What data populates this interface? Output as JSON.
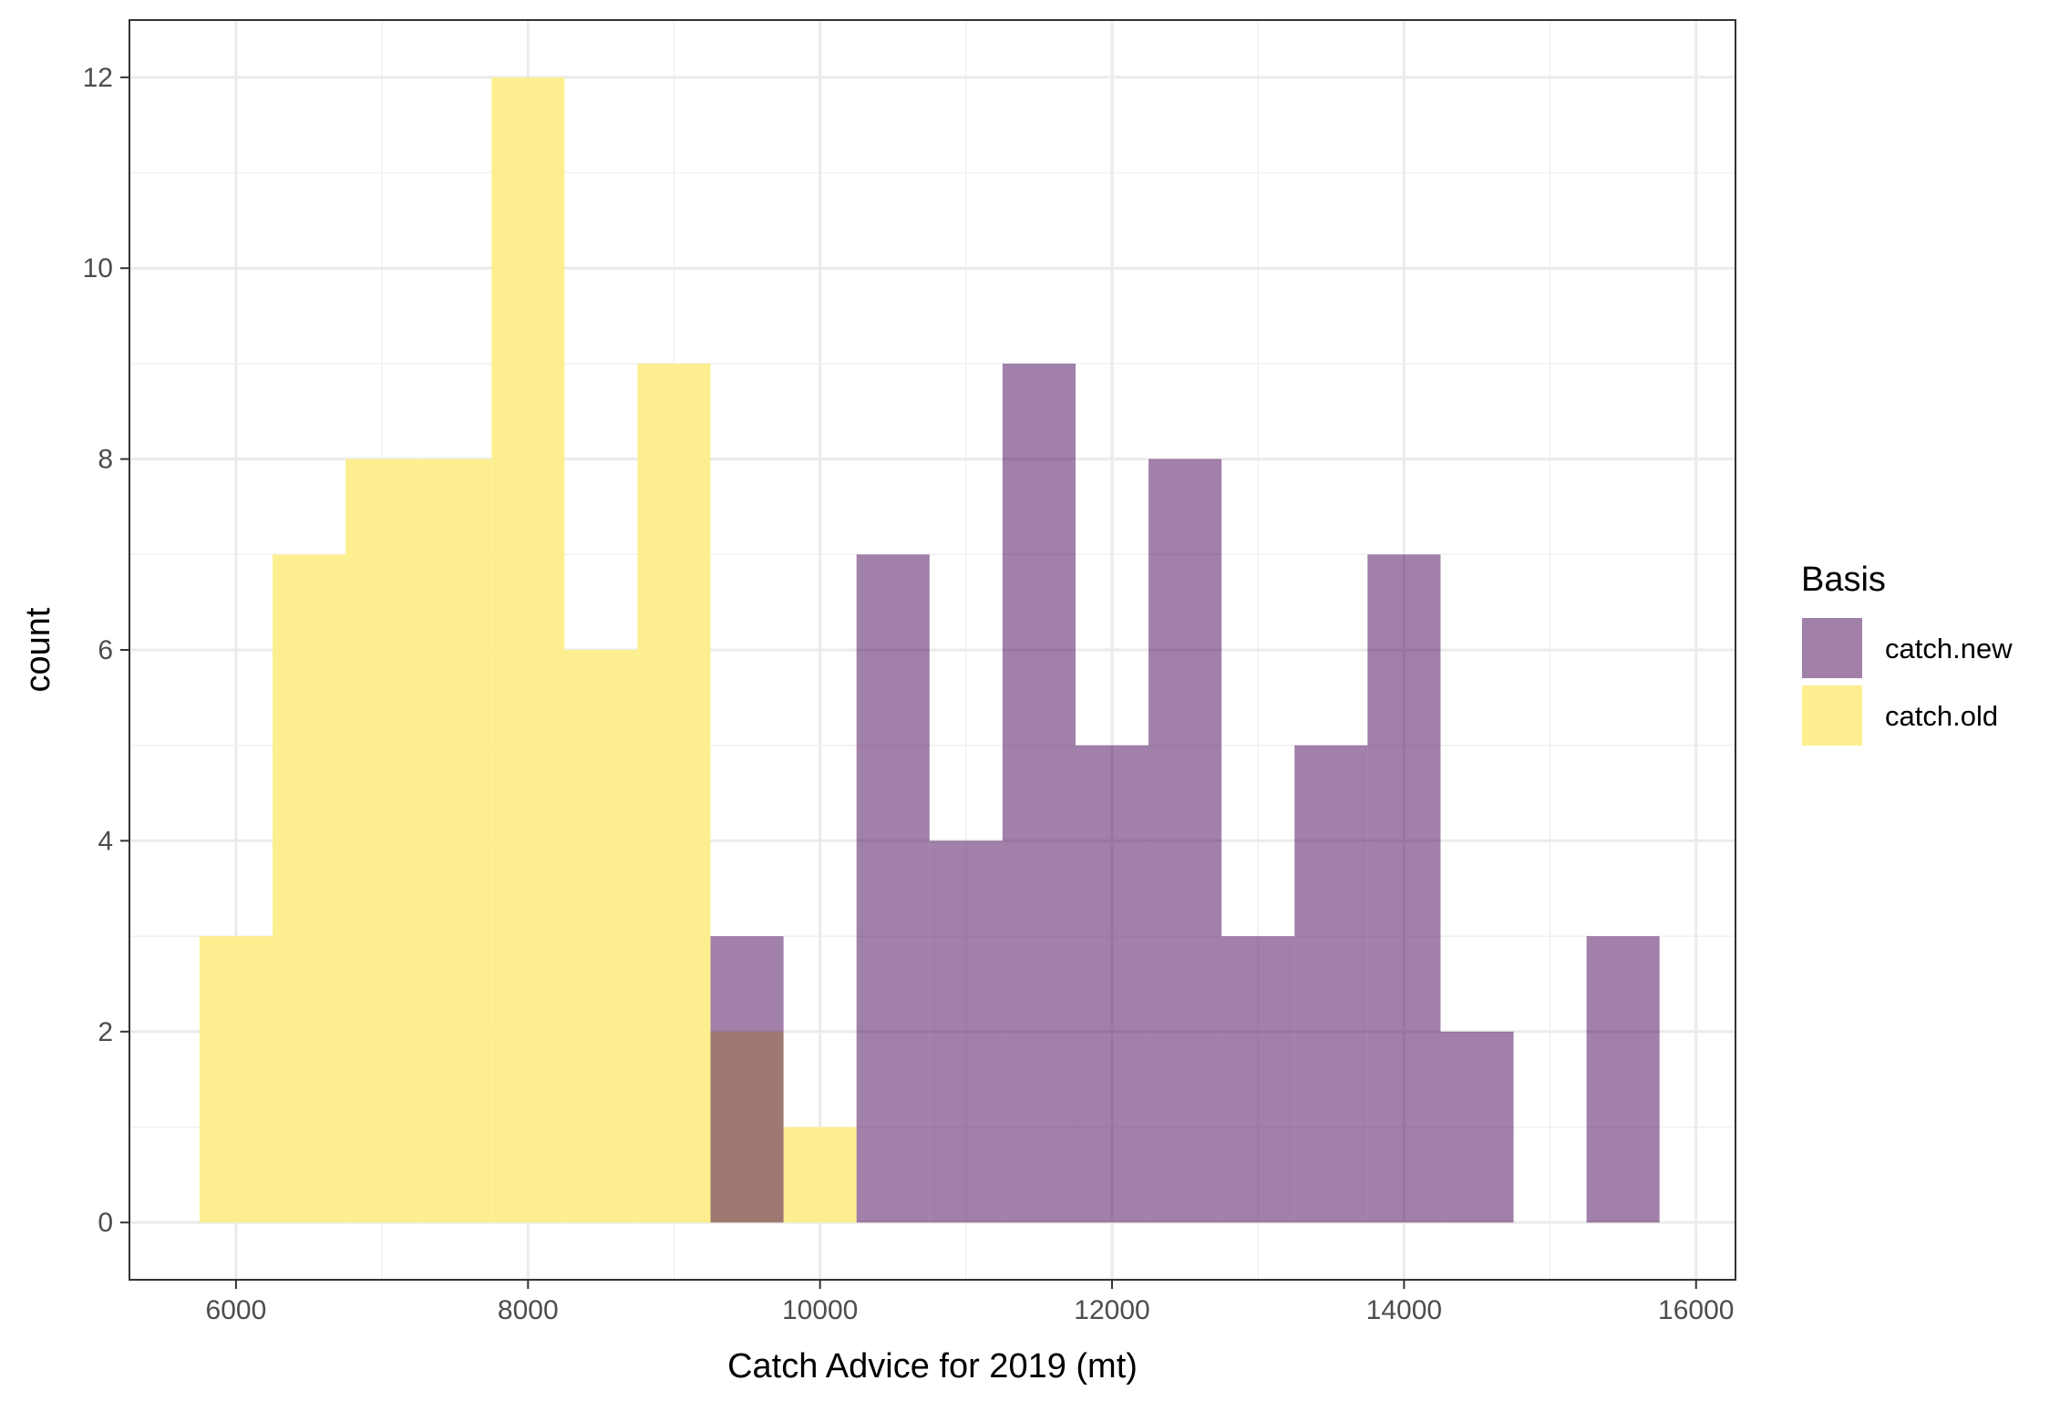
{
  "chart_data": {
    "type": "bar",
    "subtype": "histogram",
    "title": "",
    "xlabel": "Catch Advice for 2019 (mt)",
    "ylabel": "count",
    "xlim": [
      5270,
      16270
    ],
    "ylim": [
      -0.6,
      12.6
    ],
    "x_ticks": [
      6000,
      8000,
      10000,
      12000,
      14000,
      16000
    ],
    "y_ticks": [
      0,
      2,
      4,
      6,
      8,
      10,
      12
    ],
    "x_tick_labels": [
      "6000",
      "8000",
      "10000",
      "12000",
      "14000",
      "16000"
    ],
    "y_tick_labels": [
      "0",
      "2",
      "4",
      "6",
      "8",
      "10",
      "12"
    ],
    "bin_width": 500,
    "grid": true,
    "theme": "bw",
    "legend": {
      "title": "Basis",
      "position": "right",
      "entries": [
        {
          "label": "catch.new",
          "color": "#a180a8"
        },
        {
          "label": "catch.old",
          "color": "#fdef90"
        }
      ]
    },
    "series": [
      {
        "name": "catch.new",
        "color": "#a180a8",
        "bins": [
          {
            "x0": 9250,
            "x1": 9750,
            "count": 3
          },
          {
            "x0": 10250,
            "x1": 10750,
            "count": 7
          },
          {
            "x0": 10750,
            "x1": 11250,
            "count": 4
          },
          {
            "x0": 11250,
            "x1": 11750,
            "count": 9
          },
          {
            "x0": 11750,
            "x1": 12250,
            "count": 5
          },
          {
            "x0": 12250,
            "x1": 12750,
            "count": 8
          },
          {
            "x0": 12750,
            "x1": 13250,
            "count": 3
          },
          {
            "x0": 13250,
            "x1": 13750,
            "count": 5
          },
          {
            "x0": 13750,
            "x1": 14250,
            "count": 7
          },
          {
            "x0": 14250,
            "x1": 14750,
            "count": 2
          },
          {
            "x0": 15250,
            "x1": 15750,
            "count": 3
          }
        ]
      },
      {
        "name": "catch.old",
        "color": "#fdef90",
        "bins": [
          {
            "x0": 5750,
            "x1": 6250,
            "count": 3
          },
          {
            "x0": 6250,
            "x1": 6750,
            "count": 7
          },
          {
            "x0": 6750,
            "x1": 7250,
            "count": 8
          },
          {
            "x0": 7250,
            "x1": 7750,
            "count": 8
          },
          {
            "x0": 7750,
            "x1": 8250,
            "count": 12
          },
          {
            "x0": 8250,
            "x1": 8750,
            "count": 6
          },
          {
            "x0": 8750,
            "x1": 9250,
            "count": 9
          },
          {
            "x0": 9250,
            "x1": 9750,
            "count": 2
          },
          {
            "x0": 9750,
            "x1": 10250,
            "count": 1
          }
        ]
      }
    ]
  }
}
